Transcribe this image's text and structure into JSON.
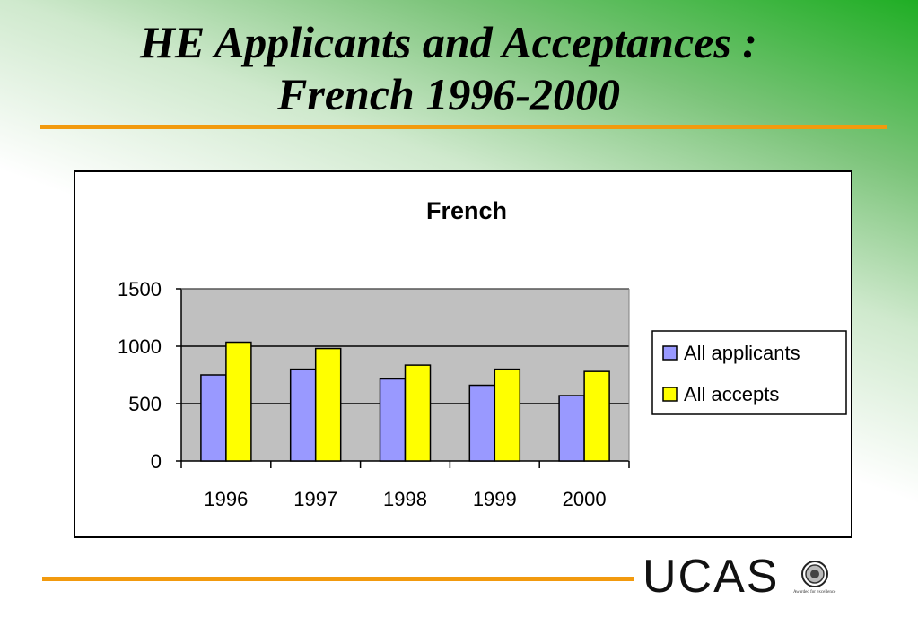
{
  "slide": {
    "title_line1": "HE Applicants and Acceptances :",
    "title_line2": "French 1996-2000",
    "logo_text": "UCAS",
    "seal_caption": "Awarded for excellence"
  },
  "colors": {
    "accent_rule": "#f29a0e",
    "plot_bg": "#c0c0c0",
    "series_applicants": "#9999ff",
    "series_accepts": "#ffff00"
  },
  "chart_data": {
    "type": "bar",
    "title": "French",
    "xlabel": "",
    "ylabel": "",
    "categories": [
      "1996",
      "1997",
      "1998",
      "1999",
      "2000"
    ],
    "series": [
      {
        "name": "All applicants",
        "values": [
          750,
          800,
          715,
          660,
          570
        ]
      },
      {
        "name": "All accepts",
        "values": [
          1035,
          980,
          835,
          800,
          780
        ]
      }
    ],
    "ylim": [
      0,
      1500
    ],
    "yticks": [
      0,
      500,
      1000,
      1500
    ],
    "grid": true,
    "legend": "right"
  }
}
